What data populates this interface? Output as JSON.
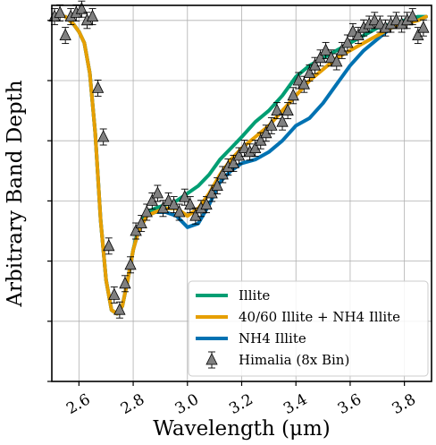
{
  "chart_data": {
    "type": "line",
    "title": "",
    "xlabel": "Wavelength (μm)",
    "ylabel": "Arbitrary Band Depth",
    "xlim": [
      2.5,
      3.9
    ],
    "ylim": [
      0,
      1
    ],
    "grid": true,
    "legend_placement": "bottom-right",
    "x_ticks": [
      2.6,
      2.8,
      3.0,
      3.2,
      3.4,
      3.6,
      3.8
    ],
    "x_tick_labels": [
      "2.6",
      "2.8",
      "3.0",
      "3.2",
      "3.4",
      "3.6",
      "3.8"
    ],
    "y_ticks": [
      0,
      0.16,
      0.32,
      0.48,
      0.64,
      0.8,
      0.96
    ],
    "series": [
      {
        "name": "Illite",
        "color": "#009E73",
        "x": [
          2.55,
          2.58,
          2.6,
          2.62,
          2.64,
          2.66,
          2.68,
          2.7,
          2.72,
          2.74,
          2.76,
          2.78,
          2.8,
          2.82,
          2.85,
          2.88,
          2.92,
          2.96,
          3.0,
          3.04,
          3.08,
          3.12,
          3.16,
          3.2,
          3.25,
          3.3,
          3.35,
          3.4,
          3.45,
          3.5,
          3.55,
          3.6,
          3.65,
          3.7,
          3.75,
          3.8,
          3.85,
          3.88
        ],
        "y": [
          0.97,
          0.95,
          0.93,
          0.9,
          0.82,
          0.66,
          0.43,
          0.27,
          0.19,
          0.18,
          0.2,
          0.27,
          0.35,
          0.41,
          0.45,
          0.46,
          0.47,
          0.48,
          0.5,
          0.52,
          0.55,
          0.59,
          0.62,
          0.65,
          0.69,
          0.72,
          0.76,
          0.81,
          0.84,
          0.86,
          0.88,
          0.9,
          0.92,
          0.94,
          0.95,
          0.96,
          0.97,
          0.97
        ]
      },
      {
        "name": "40/60 Illite + NH4 Illite",
        "color": "#E69F00",
        "x": [
          2.55,
          2.58,
          2.6,
          2.62,
          2.64,
          2.66,
          2.68,
          2.7,
          2.72,
          2.74,
          2.76,
          2.78,
          2.8,
          2.82,
          2.85,
          2.88,
          2.92,
          2.96,
          3.0,
          3.04,
          3.08,
          3.12,
          3.16,
          3.2,
          3.25,
          3.3,
          3.35,
          3.4,
          3.45,
          3.5,
          3.55,
          3.6,
          3.65,
          3.7,
          3.75,
          3.8,
          3.85,
          3.88
        ],
        "y": [
          0.97,
          0.95,
          0.93,
          0.9,
          0.82,
          0.66,
          0.43,
          0.27,
          0.19,
          0.18,
          0.2,
          0.27,
          0.35,
          0.4,
          0.44,
          0.45,
          0.46,
          0.46,
          0.44,
          0.46,
          0.5,
          0.55,
          0.59,
          0.62,
          0.65,
          0.68,
          0.72,
          0.76,
          0.8,
          0.83,
          0.86,
          0.88,
          0.9,
          0.92,
          0.94,
          0.95,
          0.96,
          0.97
        ]
      },
      {
        "name": "NH4 Illite",
        "color": "#0072B2",
        "x": [
          2.55,
          2.58,
          2.6,
          2.62,
          2.64,
          2.66,
          2.68,
          2.7,
          2.72,
          2.74,
          2.76,
          2.78,
          2.8,
          2.82,
          2.85,
          2.88,
          2.92,
          2.96,
          3.0,
          3.04,
          3.08,
          3.12,
          3.16,
          3.2,
          3.25,
          3.3,
          3.35,
          3.4,
          3.45,
          3.5,
          3.55,
          3.6,
          3.65,
          3.7,
          3.75,
          3.8,
          3.85,
          3.88
        ],
        "y": [
          0.97,
          0.95,
          0.93,
          0.9,
          0.82,
          0.66,
          0.43,
          0.27,
          0.19,
          0.18,
          0.2,
          0.27,
          0.35,
          0.4,
          0.44,
          0.45,
          0.45,
          0.44,
          0.41,
          0.42,
          0.47,
          0.53,
          0.56,
          0.58,
          0.59,
          0.61,
          0.64,
          0.68,
          0.7,
          0.74,
          0.79,
          0.84,
          0.88,
          0.91,
          0.94,
          0.95,
          0.96,
          0.97
        ]
      },
      {
        "name": "Himalia (8x Bin)",
        "color": "#808080",
        "marker": "triangle",
        "x": [
          2.51,
          2.53,
          2.55,
          2.57,
          2.59,
          2.61,
          2.63,
          2.65,
          2.67,
          2.69,
          2.71,
          2.73,
          2.75,
          2.77,
          2.79,
          2.81,
          2.83,
          2.85,
          2.87,
          2.89,
          2.91,
          2.93,
          2.95,
          2.97,
          2.99,
          3.01,
          3.03,
          3.05,
          3.07,
          3.09,
          3.11,
          3.13,
          3.15,
          3.17,
          3.19,
          3.21,
          3.23,
          3.25,
          3.27,
          3.29,
          3.31,
          3.33,
          3.35,
          3.37,
          3.39,
          3.41,
          3.43,
          3.45,
          3.47,
          3.49,
          3.51,
          3.53,
          3.55,
          3.57,
          3.59,
          3.61,
          3.63,
          3.65,
          3.67,
          3.69,
          3.71,
          3.73,
          3.75,
          3.77,
          3.79,
          3.81,
          3.83,
          3.85,
          3.87
        ],
        "y": [
          0.97,
          0.98,
          0.92,
          0.97,
          0.98,
          0.99,
          0.96,
          0.97,
          0.78,
          0.65,
          0.36,
          0.23,
          0.19,
          0.26,
          0.31,
          0.4,
          0.42,
          0.45,
          0.48,
          0.5,
          0.46,
          0.48,
          0.47,
          0.45,
          0.49,
          0.47,
          0.44,
          0.46,
          0.47,
          0.5,
          0.52,
          0.55,
          0.57,
          0.58,
          0.6,
          0.62,
          0.61,
          0.62,
          0.64,
          0.66,
          0.68,
          0.72,
          0.69,
          0.72,
          0.76,
          0.8,
          0.79,
          0.82,
          0.84,
          0.86,
          0.88,
          0.86,
          0.85,
          0.88,
          0.9,
          0.93,
          0.92,
          0.94,
          0.95,
          0.96,
          0.95,
          0.94,
          0.95,
          0.96,
          0.95,
          0.96,
          0.97,
          0.92,
          0.94
        ]
      }
    ]
  }
}
